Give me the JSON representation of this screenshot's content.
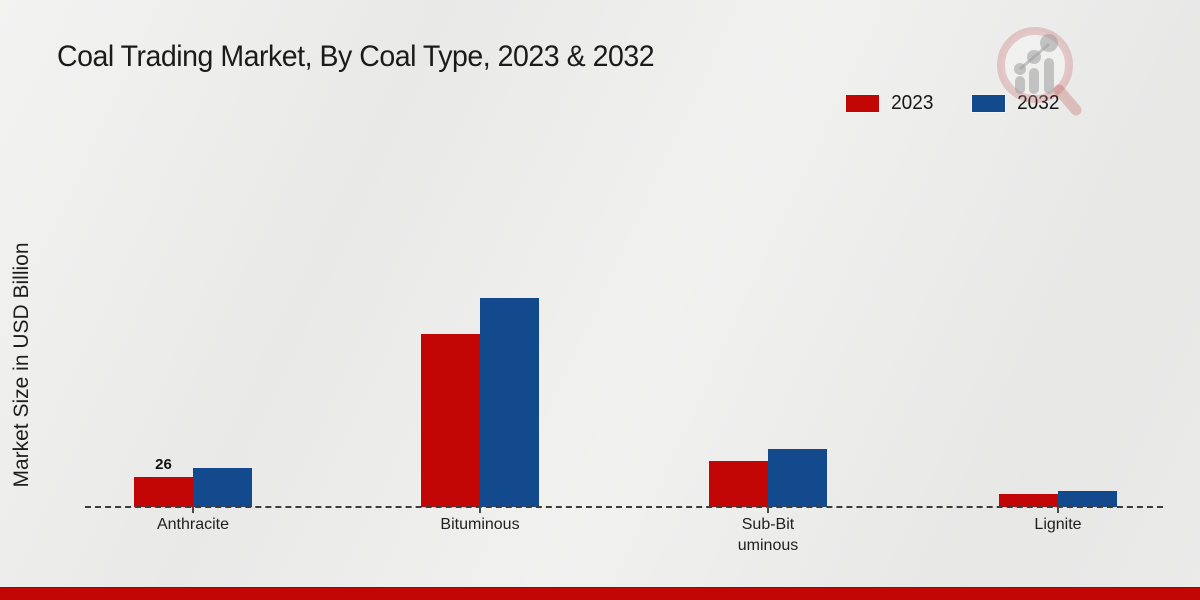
{
  "title": "Coal Trading Market, By Coal Type, 2023 & 2032",
  "y_axis_label": "Market Size in USD Billion",
  "legend": {
    "items": [
      {
        "label": "2023",
        "color": "#c20606"
      },
      {
        "label": "2032",
        "color": "#134a8e"
      }
    ]
  },
  "colors": {
    "series_2023": "#c20606",
    "series_2032": "#134a8e",
    "baseline": "#3d3d3d",
    "bottom_strip": "#c20606",
    "background": "#ebebea"
  },
  "branding": {
    "logo_name": "magnifier-growth-chart-logo"
  },
  "chart_data": {
    "type": "bar",
    "title": "Coal Trading Market, By Coal Type, 2023 & 2032",
    "ylabel": "Market Size in USD Billion",
    "xlabel": "",
    "categories": [
      "Anthracite",
      "Bituminous",
      "Sub-Bituminous",
      "Lignite"
    ],
    "category_label_lines": [
      [
        "Anthracite"
      ],
      [
        "Bituminous"
      ],
      [
        "Sub-Bit",
        "uminous"
      ],
      [
        "Lignite"
      ]
    ],
    "series": [
      {
        "name": "2023",
        "color": "#c20606",
        "values": [
          26,
          150,
          40,
          11
        ]
      },
      {
        "name": "2032",
        "color": "#134a8e",
        "values": [
          34,
          181,
          50,
          14
        ]
      }
    ],
    "annotations": [
      {
        "series_index": 0,
        "category_index": 0,
        "text": "26"
      }
    ],
    "ylim": [
      0,
      210
    ],
    "grid": false,
    "legend_position": "top-right",
    "baseline_style": "dashed"
  }
}
